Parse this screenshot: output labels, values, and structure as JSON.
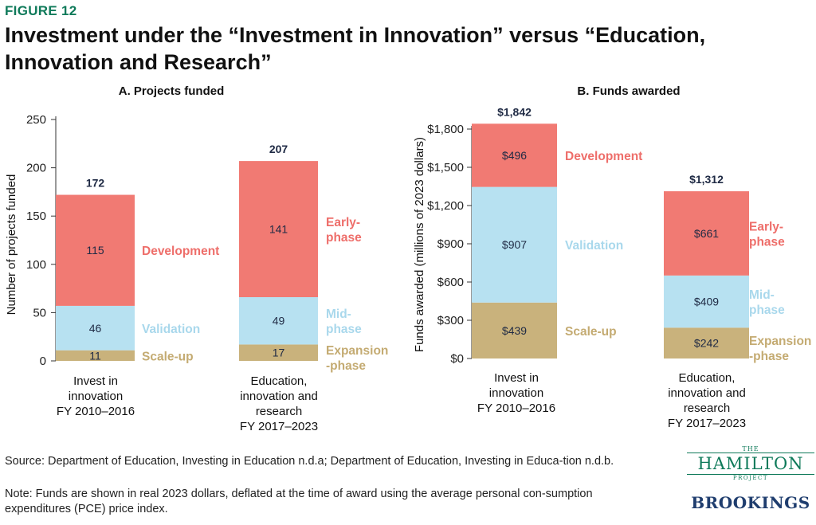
{
  "figure_label": "FIGURE 12",
  "title": "Investment under the “Investment in Innovation” versus “Education, Innovation and Research”",
  "colors": {
    "development": "#f17a73",
    "validation": "#b7e1f1",
    "scaleup": "#c9b27c",
    "label_development": "#ee6e6a",
    "label_validation": "#a9d8ec",
    "label_scaleup": "#c4ab72",
    "axis": "#333333",
    "total": "#1f2a44"
  },
  "chart_data": [
    {
      "type": "bar",
      "stacked": true,
      "title": "A. Projects funded",
      "xlabel": "",
      "ylabel": "Number of projects funded",
      "ylim": [
        0,
        250
      ],
      "yticks": [
        0,
        50,
        100,
        150,
        200,
        250
      ],
      "ytick_labels": [
        "0",
        "50",
        "100",
        "150",
        "200",
        "250"
      ],
      "categories": [
        [
          "Invest in",
          "innovation",
          "FY 2010–2016"
        ],
        [
          "Education,",
          "innovation and",
          "research",
          "FY 2017–2023"
        ]
      ],
      "series": [
        {
          "key": "scaleup",
          "values": [
            11,
            17
          ],
          "value_labels": [
            "11",
            "17"
          ]
        },
        {
          "key": "validation",
          "values": [
            46,
            49
          ],
          "value_labels": [
            "46",
            "49"
          ]
        },
        {
          "key": "development",
          "values": [
            115,
            141
          ],
          "value_labels": [
            "115",
            "141"
          ]
        }
      ],
      "totals": [
        172,
        207
      ],
      "total_labels": [
        "172",
        "207"
      ],
      "side_labels": [
        {
          "bar": 0,
          "key": "development",
          "lines": [
            "Development"
          ]
        },
        {
          "bar": 0,
          "key": "validation",
          "lines": [
            "Validation"
          ]
        },
        {
          "bar": 0,
          "key": "scaleup",
          "lines": [
            "Scale-up"
          ]
        },
        {
          "bar": 1,
          "key": "development",
          "lines": [
            "Early-",
            "phase"
          ]
        },
        {
          "bar": 1,
          "key": "validation",
          "lines": [
            "Mid-",
            "phase"
          ]
        },
        {
          "bar": 1,
          "key": "scaleup",
          "lines": [
            "Expansion",
            "-phase"
          ]
        }
      ]
    },
    {
      "type": "bar",
      "stacked": true,
      "title": "B. Funds awarded",
      "xlabel": "",
      "ylabel": "Funds awarded (millions of 2023 dollars)",
      "ylim": [
        0,
        1800
      ],
      "yticks": [
        0,
        300,
        600,
        900,
        1200,
        1500,
        1800
      ],
      "ytick_labels": [
        "$0",
        "$300",
        "$600",
        "$900",
        "$1,200",
        "$1,500",
        "$1,800"
      ],
      "categories": [
        [
          "Invest in",
          "innovation",
          "FY 2010–2016"
        ],
        [
          "Education,",
          "innovation and",
          "research",
          "FY 2017–2023"
        ]
      ],
      "series": [
        {
          "key": "scaleup",
          "values": [
            439,
            242
          ],
          "value_labels": [
            "$439",
            "$242"
          ]
        },
        {
          "key": "validation",
          "values": [
            907,
            409
          ],
          "value_labels": [
            "$907",
            "$409"
          ]
        },
        {
          "key": "development",
          "values": [
            496,
            661
          ],
          "value_labels": [
            "$496",
            "$661"
          ]
        }
      ],
      "totals": [
        1842,
        1312
      ],
      "total_labels": [
        "$1,842",
        "$1,312"
      ],
      "side_labels": [
        {
          "bar": 0,
          "key": "development",
          "lines": [
            "Development"
          ]
        },
        {
          "bar": 0,
          "key": "validation",
          "lines": [
            "Validation"
          ]
        },
        {
          "bar": 0,
          "key": "scaleup",
          "lines": [
            "Scale-up"
          ]
        },
        {
          "bar": 1,
          "key": "development",
          "lines": [
            "Early-",
            "phase"
          ]
        },
        {
          "bar": 1,
          "key": "validation",
          "lines": [
            "Mid-",
            "phase"
          ]
        },
        {
          "bar": 1,
          "key": "scaleup",
          "lines": [
            "Expansion",
            "-phase"
          ]
        }
      ]
    }
  ],
  "source": "Source: Department of Education, Investing in Education n.d.a; Department of Education, Investing in Educa-tion n.d.b.",
  "note": "Note: Funds are shown in real 2023 dollars, deflated at the time of award using the average personal con-sumption expenditures (PCE) price index.",
  "logos": {
    "hamilton_the": "THE",
    "hamilton_name": "HAMILTON",
    "hamilton_project": "PROJECT",
    "brookings": "BROOKINGS"
  }
}
